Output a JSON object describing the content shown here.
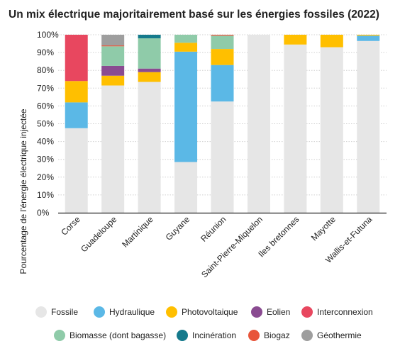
{
  "chart_data": {
    "type": "bar",
    "stacked": true,
    "title": "Un mix électrique majoritairement basé sur les énergies fossiles (2022)",
    "xlabel": "",
    "ylabel": "Pourcentage de l'énergie électrique injectée",
    "ylim": [
      0,
      100
    ],
    "yticks": [
      "0%",
      "10%",
      "20%",
      "30%",
      "40%",
      "50%",
      "60%",
      "70%",
      "80%",
      "90%",
      "100%"
    ],
    "grid": true,
    "legend_position": "bottom",
    "categories": [
      "Corse",
      "Guadeloupe",
      "Martinique",
      "Guyane",
      "Réunion",
      "Saint-Pierre-Miquelon",
      "Iles bretonnes",
      "Mayotte",
      "Wallis-et-Futuna"
    ],
    "series": [
      {
        "name": "Fossile",
        "color": "#e6e6e6",
        "values": [
          47.5,
          71.5,
          73.5,
          28.5,
          62.5,
          100,
          94.5,
          93,
          96.5
        ]
      },
      {
        "name": "Hydraulique",
        "color": "#5bb8e6",
        "values": [
          14.5,
          0,
          0,
          62,
          20.5,
          0,
          0,
          0,
          3
        ]
      },
      {
        "name": "Photovoltaique",
        "color": "#ffbf00",
        "values": [
          12,
          5.5,
          5.5,
          5,
          9,
          0,
          5.5,
          7,
          0.5
        ]
      },
      {
        "name": "Eolien",
        "color": "#8a4b91",
        "values": [
          0,
          5.5,
          2,
          0,
          0,
          0,
          0,
          0,
          0
        ]
      },
      {
        "name": "Interconnexion",
        "color": "#e8475f",
        "values": [
          26,
          0,
          0,
          0,
          0,
          0,
          0,
          0,
          0
        ]
      },
      {
        "name": "Biomasse (dont bagasse)",
        "color": "#8fcba9",
        "values": [
          0,
          11,
          17,
          4.5,
          7.5,
          0,
          0,
          0,
          0
        ]
      },
      {
        "name": "Incinération",
        "color": "#157a8c",
        "values": [
          0,
          0,
          2,
          0,
          0,
          0,
          0,
          0,
          0
        ]
      },
      {
        "name": "Biogaz",
        "color": "#e8553a",
        "values": [
          0,
          0.5,
          0,
          0,
          0.5,
          0,
          0,
          0,
          0
        ]
      },
      {
        "name": "Géothermie",
        "color": "#9e9e9e",
        "values": [
          0,
          6,
          0,
          0,
          0,
          0,
          0,
          0,
          0
        ]
      }
    ]
  }
}
